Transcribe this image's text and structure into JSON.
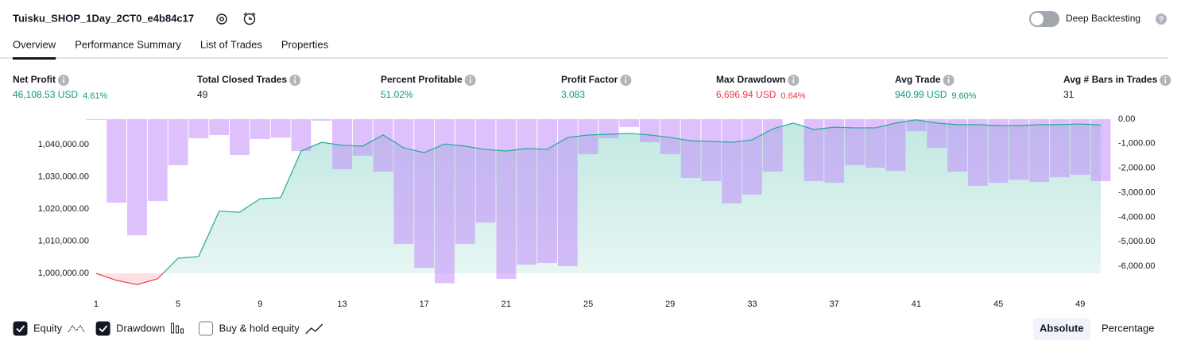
{
  "header": {
    "title": "Tuisku_SHOP_1Day_2CT0_e4b84c17",
    "toggle_label": "Deep Backtesting",
    "toggle_on": false
  },
  "tabs": {
    "items": [
      "Overview",
      "Performance Summary",
      "List of Trades",
      "Properties"
    ],
    "active": 0
  },
  "metrics": [
    {
      "label": "Net Profit",
      "value": "46,108.53 USD",
      "change": "4.61%",
      "tone": "positive"
    },
    {
      "label": "Total Closed Trades",
      "value": "49",
      "tone": "neutral"
    },
    {
      "label": "Percent Profitable",
      "value": "51.02%",
      "tone": "positive"
    },
    {
      "label": "Profit Factor",
      "value": "3.083",
      "tone": "positive"
    },
    {
      "label": "Max Drawdown",
      "value": "6,696.94 USD",
      "change": "0.64%",
      "tone": "negative"
    },
    {
      "label": "Avg Trade",
      "value": "940.99 USD",
      "change": "9.60%",
      "tone": "positive"
    },
    {
      "label": "Avg # Bars in Trades",
      "value": "31",
      "tone": "neutral"
    }
  ],
  "chart_data": {
    "type": "combo",
    "x": [
      1,
      2,
      3,
      4,
      5,
      6,
      7,
      8,
      9,
      10,
      11,
      12,
      13,
      14,
      15,
      16,
      17,
      18,
      19,
      20,
      21,
      22,
      23,
      24,
      25,
      26,
      27,
      28,
      29,
      30,
      31,
      32,
      33,
      34,
      35,
      36,
      37,
      38,
      39,
      40,
      41,
      42,
      43,
      44,
      45,
      46,
      47,
      48,
      49,
      50
    ],
    "xlim": [
      0.5,
      50.5
    ],
    "xticks": [
      1,
      5,
      9,
      13,
      17,
      21,
      25,
      29,
      33,
      37,
      41,
      45,
      49
    ],
    "ylim": [
      996050,
      1047900
    ],
    "yticks": [
      {
        "value": 1000000,
        "label": "1,000,000.00"
      },
      {
        "value": 1010000,
        "label": "1,010,000.00"
      },
      {
        "value": 1020000,
        "label": "1,020,000.00"
      },
      {
        "value": 1030000,
        "label": "1,030,000.00"
      },
      {
        "value": 1040000,
        "label": "1,040,000.00"
      }
    ],
    "y2lim": [
      -6810,
      0
    ],
    "y2ticks": [
      {
        "value": 0,
        "label": "0.00"
      },
      {
        "value": -1000,
        "label": "-1,000.00"
      },
      {
        "value": -2000,
        "label": "-2,000.00"
      },
      {
        "value": -3000,
        "label": "-3,000.00"
      },
      {
        "value": -4000,
        "label": "-4,000.00"
      },
      {
        "value": -5000,
        "label": "-5,000.00"
      },
      {
        "value": -6000,
        "label": "-6,000.00"
      }
    ],
    "grid": false,
    "series": [
      {
        "name": "Equity",
        "kind": "line",
        "checked": true,
        "color": "#22ab94",
        "negative_color": "#f23645",
        "values": [
          1000000,
          997800,
          996500,
          998300,
          1004700,
          1005200,
          1019300,
          1019000,
          1023200,
          1023500,
          1038000,
          1040700,
          1039800,
          1039500,
          1043000,
          1039000,
          1037500,
          1040200,
          1039500,
          1038500,
          1038000,
          1038800,
          1038500,
          1042200,
          1043000,
          1043200,
          1043500,
          1043000,
          1042200,
          1041200,
          1041000,
          1040700,
          1041500,
          1044900,
          1046700,
          1044700,
          1045400,
          1045200,
          1045200,
          1046700,
          1047700,
          1046700,
          1046200,
          1046200,
          1045900,
          1045900,
          1046200,
          1046200,
          1046400,
          1046108.53
        ]
      },
      {
        "name": "Drawdown",
        "kind": "bar",
        "axis": "y2",
        "checked": true,
        "color": "#c38dfc",
        "values": [
          -30,
          -3410,
          -4740,
          -3340,
          -1880,
          -780,
          -650,
          -1460,
          -810,
          -750,
          -1300,
          -60,
          -2040,
          -1490,
          -2140,
          -5090,
          -6070,
          -6696.94,
          -5090,
          -4220,
          -6520,
          -5940,
          -5870,
          -6000,
          -1430,
          -780,
          -320,
          -940,
          -1430,
          -2400,
          -2530,
          -3440,
          -3080,
          -2140,
          0,
          -2530,
          -2590,
          -1880,
          -1980,
          -2110,
          -490,
          -1170,
          -2140,
          -2720,
          -2590,
          -2470,
          -2560,
          -2370,
          -2270,
          -2530
        ]
      }
    ],
    "toggles": [
      {
        "name": "Buy & hold equity",
        "checked": false
      }
    ]
  },
  "view_modes": {
    "items": [
      "Absolute",
      "Percentage"
    ],
    "active": 0
  }
}
